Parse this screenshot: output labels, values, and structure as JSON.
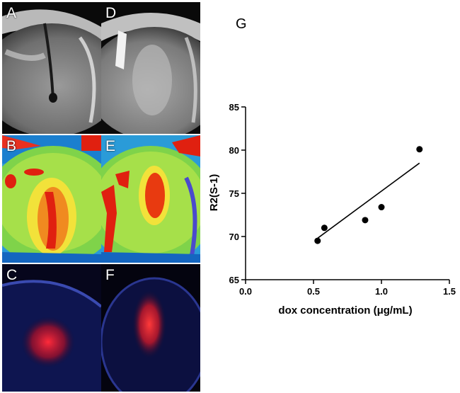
{
  "panels": [
    {
      "letter": "A",
      "type": "mri-t2"
    },
    {
      "letter": "B",
      "type": "r2-color-map"
    },
    {
      "letter": "C",
      "type": "fluorescence"
    },
    {
      "letter": "D",
      "type": "mri-t2"
    },
    {
      "letter": "E",
      "type": "r2-color-map"
    },
    {
      "letter": "F",
      "type": "fluorescence"
    }
  ],
  "chart_data": {
    "type": "scatter",
    "panel_label": "G",
    "title": "",
    "xlabel": "dox concentration (μg/mL)",
    "ylabel": "R2(S-1)",
    "xlim": [
      0.0,
      1.5
    ],
    "ylim": [
      65,
      85
    ],
    "xticks": [
      "0.0",
      "0.5",
      "1.0",
      "1.5"
    ],
    "yticks": [
      "65",
      "70",
      "75",
      "80",
      "85"
    ],
    "points": [
      {
        "x": 0.53,
        "y": 69.5
      },
      {
        "x": 0.58,
        "y": 71.0
      },
      {
        "x": 0.88,
        "y": 71.9
      },
      {
        "x": 1.0,
        "y": 73.4
      },
      {
        "x": 1.28,
        "y": 80.1
      }
    ],
    "fit_line": {
      "x": [
        0.53,
        1.28
      ],
      "y": [
        69.8,
        78.5
      ]
    },
    "grid": false,
    "legend": "none"
  }
}
